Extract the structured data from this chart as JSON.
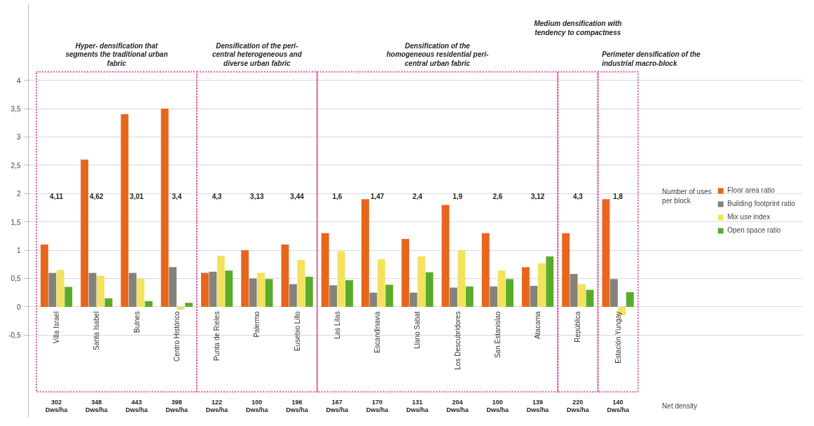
{
  "chart_data": {
    "type": "bar",
    "categories": [
      "Villa Israel",
      "Santa Isabel",
      "Bulnes",
      "Centro Histórico",
      "Punta de Rieles",
      "Palermo",
      "Eusebio Lillo",
      "Las Lilas",
      "Escandinavia",
      "Llano Sabat",
      "Los Descubridores",
      "San Estanislao",
      "Atacama",
      "República",
      "Estación Yungay"
    ],
    "series": [
      {
        "name": "Floor area ratio",
        "color": "#e8661c",
        "values": [
          1.1,
          2.6,
          3.4,
          3.5,
          0.6,
          1.0,
          1.1,
          1.3,
          1.9,
          1.2,
          1.8,
          1.3,
          0.7,
          1.3,
          1.9
        ]
      },
      {
        "name": "Building footprint ratio",
        "color": "#858279",
        "values": [
          0.6,
          0.6,
          0.6,
          0.7,
          0.62,
          0.5,
          0.4,
          0.38,
          0.25,
          0.25,
          0.34,
          0.36,
          0.37,
          0.58,
          0.49
        ]
      },
      {
        "name": "Mix use index",
        "color": "#f2e25e",
        "values": [
          0.65,
          0.55,
          0.5,
          -0.05,
          0.9,
          0.6,
          0.83,
          0.98,
          0.84,
          0.89,
          1.0,
          0.64,
          0.77,
          0.4,
          -0.15
        ]
      },
      {
        "name": "Open space ratio",
        "color": "#5bab2a",
        "values": [
          0.35,
          0.15,
          0.1,
          0.07,
          0.64,
          0.49,
          0.53,
          0.47,
          0.39,
          0.61,
          0.36,
          0.49,
          0.89,
          0.3,
          0.26
        ]
      }
    ],
    "ylim": [
      -1.95,
      5.35
    ],
    "yticks": [
      {
        "value": -0.5,
        "label": "-0,5"
      },
      0,
      {
        "value": 0.5,
        "label": "0,5"
      },
      1,
      {
        "value": 1.5,
        "label": "1,5"
      },
      2,
      {
        "value": 2.5,
        "label": "2,5"
      },
      3,
      {
        "value": 3.5,
        "label": "3,5"
      },
      4
    ],
    "grid": "y",
    "legend": "right",
    "annotations": [
      "Hyper- densification that segments the traditional urban fabric",
      "Densification of the peri-central heterogeneous and diverse urban fabric",
      "Densification of the homogeneous residential peri-central urban fabric",
      "Medium densification with tendency to compactness",
      "Perimeter densification of the industrial macro-block",
      "4,11",
      "4,62",
      "3,01",
      "3,4",
      "4,3",
      "3,13",
      "3,44",
      "1,6",
      "1,47",
      "2,4",
      "1,9",
      "2,6",
      "3,12",
      "4,3",
      "1,8",
      "Number of uses per block",
      "302 Dws/ha",
      "348 Dws/ha",
      "443 Dws/ha",
      "398 Dws/ha",
      "122 Dws/ha",
      "100 Dws/ha",
      "196 Dws/ha",
      "167 Dws/ha",
      "170 Dws/ha",
      "131 Dws/ha",
      "204 Dws/ha",
      "100 Dws/ha",
      "139 Dws/ha",
      "220 Dws/ha",
      "140 Dws/ha",
      "Net density"
    ]
  }
}
